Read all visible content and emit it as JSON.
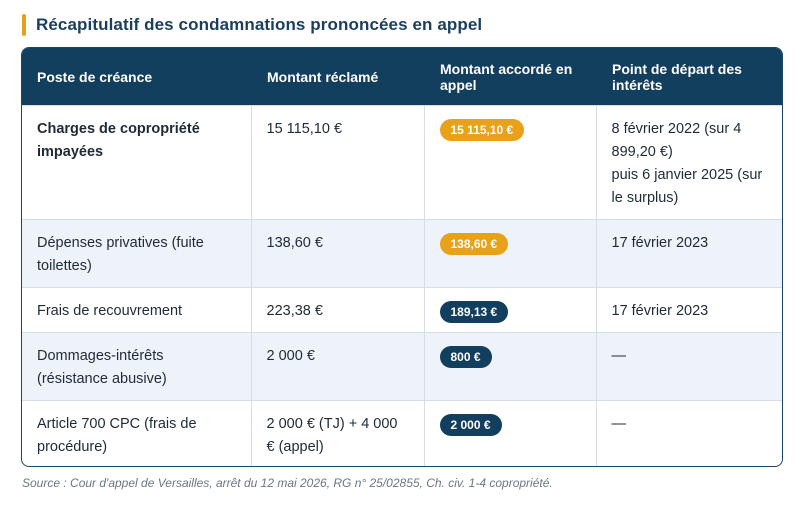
{
  "title": "Récapitulatif des condamnations prononcées en appel",
  "headers": [
    "Poste de créance",
    "Montant réclamé",
    "Montant accordé en appel",
    "Point de départ des intérêts"
  ],
  "rows": [
    {
      "poste": "Charges de copropriété impayées",
      "reclame": "15 115,10 €",
      "accorde": "15 115,10 €",
      "accorde_style": "orange",
      "interets": [
        "8 février 2022 (sur 4 899,20 €)",
        "puis 6 janvier 2025 (sur le surplus)"
      ]
    },
    {
      "poste": "Dépenses privatives (fuite toilettes)",
      "reclame": "138,60 €",
      "accorde": "138,60 €",
      "accorde_style": "orange",
      "interets": [
        "17 février 2023"
      ]
    },
    {
      "poste": "Frais de recouvrement",
      "reclame": "223,38 €",
      "accorde": "189,13 €",
      "accorde_style": "navy",
      "interets": [
        "17 février 2023"
      ]
    },
    {
      "poste": "Dommages-intérêts (résistance abusive)",
      "reclame": "2 000 €",
      "accorde": "800 €",
      "accorde_style": "navy",
      "interets": [
        "—"
      ]
    },
    {
      "poste": "Article 700 CPC (frais de procédure)",
      "reclame": "2 000 € (TJ) + 4 000 € (appel)",
      "accorde": "2 000 €",
      "accorde_style": "navy",
      "interets": [
        "—"
      ]
    }
  ],
  "source": "Source : Cour d'appel de Versailles, arrêt du 12 mai 2026, RG n° 25/02855, Ch. civ. 1-4 copropriété.",
  "colors": {
    "accent": "#e8a21a",
    "navy": "#133f5f",
    "alt_row": "#eef3f9"
  }
}
